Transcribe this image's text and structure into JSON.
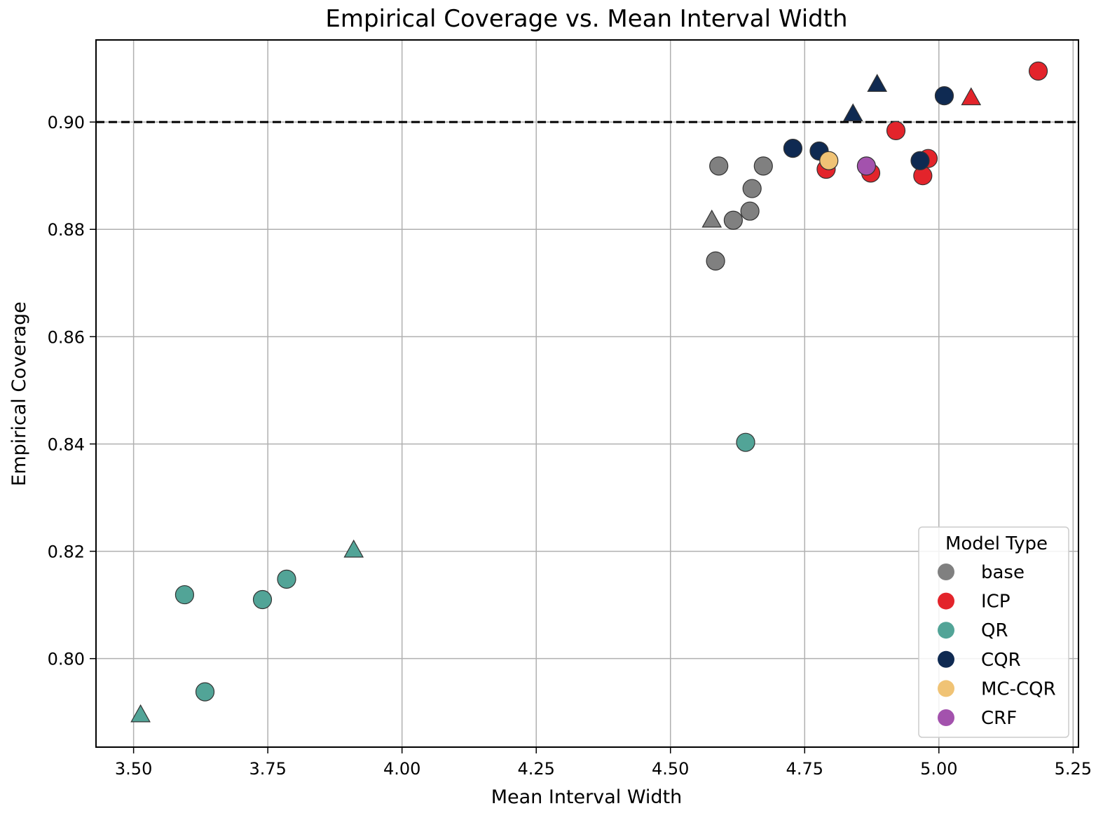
{
  "chart_data": {
    "type": "scatter",
    "title": "Empirical Coverage vs. Mean Interval Width",
    "xlabel": "Mean Interval Width",
    "ylabel": "Empirical Coverage",
    "xlim": [
      3.43,
      5.26
    ],
    "ylim": [
      0.7835,
      0.9153
    ],
    "xticks": [
      3.5,
      3.75,
      4.0,
      4.25,
      4.5,
      4.75,
      5.0,
      5.25
    ],
    "xtick_labels": [
      "3.50",
      "3.75",
      "4.00",
      "4.25",
      "4.50",
      "4.75",
      "5.00",
      "5.25"
    ],
    "yticks": [
      0.8,
      0.82,
      0.84,
      0.86,
      0.88,
      0.9
    ],
    "ytick_labels": [
      "0.80",
      "0.82",
      "0.84",
      "0.86",
      "0.88",
      "0.90"
    ],
    "grid": true,
    "reference_line": {
      "y": 0.9,
      "style": "dashed",
      "color": "#000000"
    },
    "legend": {
      "title": "Model Type",
      "placement": "lower-right",
      "entries": [
        "base",
        "ICP",
        "QR",
        "CQR",
        "MC-CQR",
        "CRF"
      ]
    },
    "series": [
      {
        "name": "base",
        "color": "#808080",
        "points": [
          {
            "x": 4.59,
            "y": 0.8918,
            "marker": "circle"
          },
          {
            "x": 4.673,
            "y": 0.8918,
            "marker": "circle"
          },
          {
            "x": 4.652,
            "y": 0.8876,
            "marker": "circle"
          },
          {
            "x": 4.648,
            "y": 0.8834,
            "marker": "circle"
          },
          {
            "x": 4.617,
            "y": 0.8817,
            "marker": "circle"
          },
          {
            "x": 4.577,
            "y": 0.8817,
            "marker": "triangle"
          },
          {
            "x": 4.584,
            "y": 0.8741,
            "marker": "circle"
          }
        ]
      },
      {
        "name": "ICP",
        "color": "#e3242b",
        "points": [
          {
            "x": 5.185,
            "y": 0.9095,
            "marker": "circle"
          },
          {
            "x": 5.06,
            "y": 0.9045,
            "marker": "triangle"
          },
          {
            "x": 4.92,
            "y": 0.8984,
            "marker": "circle"
          },
          {
            "x": 4.98,
            "y": 0.8932,
            "marker": "circle"
          },
          {
            "x": 4.79,
            "y": 0.8912,
            "marker": "circle"
          },
          {
            "x": 4.873,
            "y": 0.8905,
            "marker": "circle"
          },
          {
            "x": 4.97,
            "y": 0.89,
            "marker": "circle"
          }
        ]
      },
      {
        "name": "QR",
        "color": "#52a497",
        "points": [
          {
            "x": 4.64,
            "y": 0.8403,
            "marker": "circle"
          },
          {
            "x": 3.91,
            "y": 0.8202,
            "marker": "triangle"
          },
          {
            "x": 3.785,
            "y": 0.8148,
            "marker": "circle"
          },
          {
            "x": 3.595,
            "y": 0.8119,
            "marker": "circle"
          },
          {
            "x": 3.74,
            "y": 0.811,
            "marker": "circle"
          },
          {
            "x": 3.633,
            "y": 0.7938,
            "marker": "circle"
          },
          {
            "x": 3.513,
            "y": 0.7895,
            "marker": "triangle"
          }
        ]
      },
      {
        "name": "CQR",
        "color": "#0f2a52",
        "points": [
          {
            "x": 4.885,
            "y": 0.907,
            "marker": "triangle"
          },
          {
            "x": 5.01,
            "y": 0.9049,
            "marker": "circle"
          },
          {
            "x": 4.84,
            "y": 0.9015,
            "marker": "triangle"
          },
          {
            "x": 4.728,
            "y": 0.8951,
            "marker": "circle"
          },
          {
            "x": 4.777,
            "y": 0.8946,
            "marker": "circle"
          },
          {
            "x": 4.965,
            "y": 0.8928,
            "marker": "circle"
          }
        ]
      },
      {
        "name": "MC-CQR",
        "color": "#f0c375",
        "points": [
          {
            "x": 4.795,
            "y": 0.8928,
            "marker": "circle"
          }
        ]
      },
      {
        "name": "CRF",
        "color": "#a352ad",
        "points": [
          {
            "x": 4.865,
            "y": 0.8918,
            "marker": "circle"
          }
        ]
      }
    ]
  }
}
